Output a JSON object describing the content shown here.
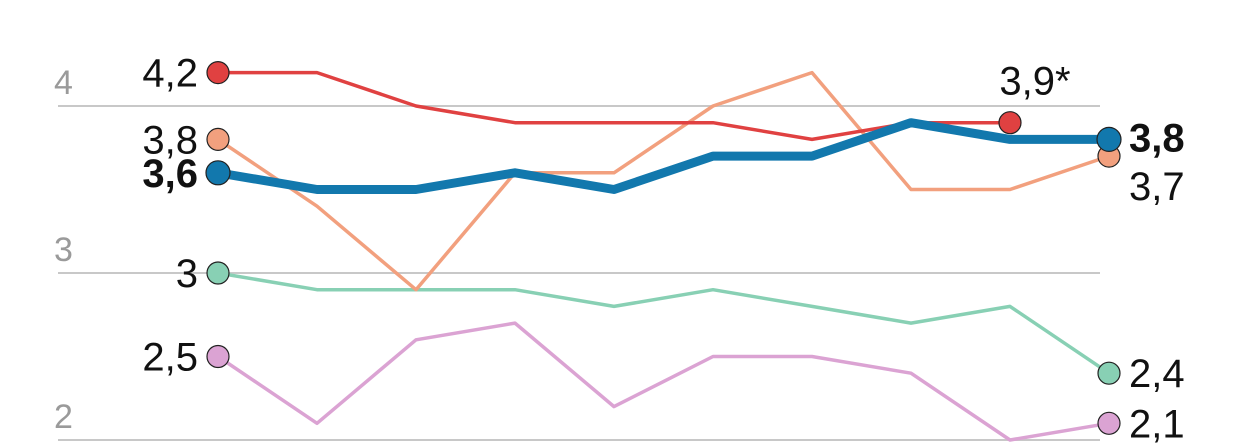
{
  "chart_data": {
    "type": "line",
    "ylim": [
      2,
      4.2
    ],
    "yticks": [
      2,
      3,
      4
    ],
    "ytick_labels": [
      "2",
      "3",
      "4"
    ],
    "x": [
      0,
      1,
      2,
      3,
      4,
      5,
      6,
      7,
      8,
      9
    ],
    "grid": true,
    "series": [
      {
        "color": "#e04141",
        "values": [
          4.2,
          4.2,
          4.0,
          3.9,
          3.9,
          3.9,
          3.8,
          3.9,
          3.9,
          null
        ],
        "start_label": "4,2",
        "end_label": "3,9*",
        "end_label_anchor": "middle",
        "end_label_offset": -42,
        "highlight": false
      },
      {
        "color": "#f2a07e",
        "values": [
          3.8,
          3.4,
          2.9,
          3.6,
          3.6,
          4.0,
          4.2,
          3.5,
          3.5,
          3.7
        ],
        "start_label": "3,8",
        "end_label": "3,7",
        "end_label_anchor": "start",
        "end_label_offset": 30,
        "highlight": false
      },
      {
        "color": "#1278ad",
        "values": [
          3.6,
          3.5,
          3.5,
          3.6,
          3.5,
          3.7,
          3.7,
          3.9,
          3.8,
          3.8
        ],
        "start_label": "3,6",
        "end_label": "3,8",
        "end_label_anchor": "start",
        "end_label_offset": -2,
        "highlight": true
      },
      {
        "color": "#88d0b4",
        "values": [
          3.0,
          2.9,
          2.9,
          2.9,
          2.8,
          2.9,
          2.8,
          2.7,
          2.8,
          2.4
        ],
        "start_label": "3",
        "end_label": "2,4",
        "end_label_anchor": "start",
        "end_label_offset": 0,
        "highlight": false
      },
      {
        "color": "#dba3d3",
        "values": [
          2.5,
          2.1,
          2.6,
          2.7,
          2.2,
          2.5,
          2.5,
          2.4,
          2.0,
          2.1
        ],
        "start_label": "2,5",
        "end_label": "2,1",
        "end_label_anchor": "start",
        "end_label_offset": 0,
        "highlight": false
      }
    ]
  }
}
